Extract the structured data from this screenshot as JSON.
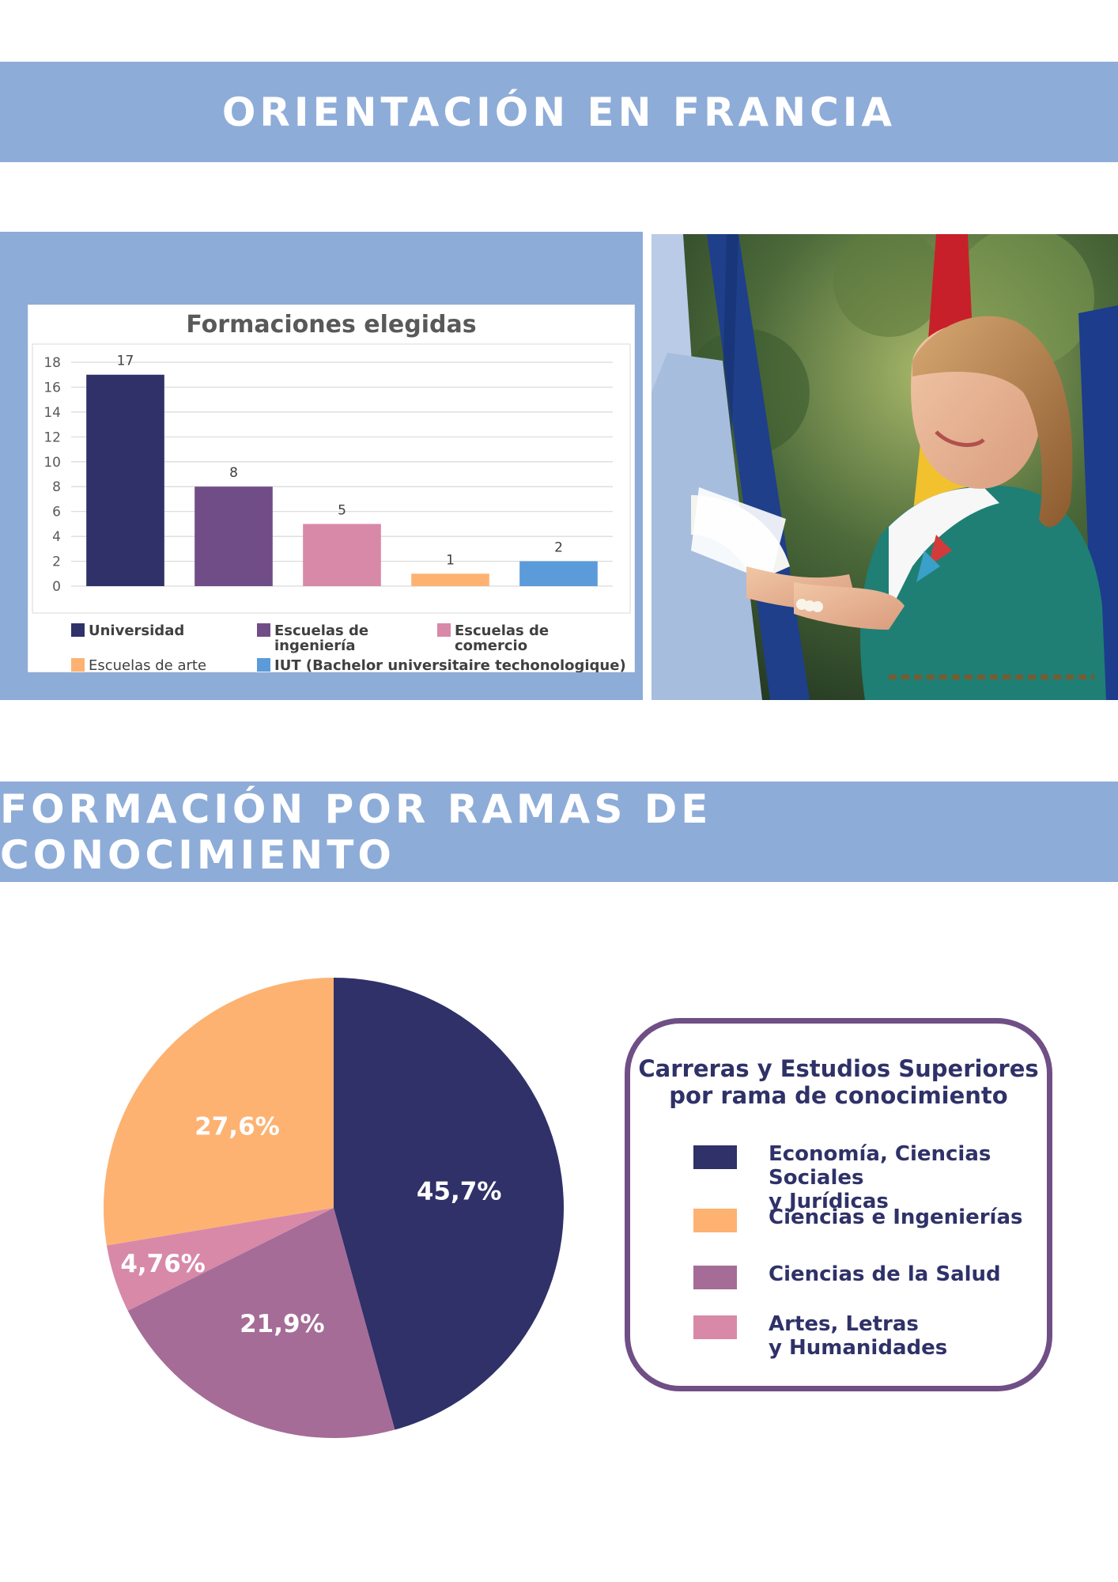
{
  "header": {
    "title": "ORIENTACIÓN EN FRANCIA"
  },
  "section2": {
    "title": "FORMACIÓN POR RAMAS DE CONOCIMIENTO"
  },
  "colors": {
    "banner": "#8eacd8",
    "navy": "#2f3168",
    "purple": "#714d87",
    "pink": "#d889a8",
    "orange": "#fdb272",
    "blue": "#5b9bd9",
    "mauve": "#a56c97"
  },
  "photo": {
    "description_icon": "photo-graduate-receiving-diploma"
  },
  "chart_data": [
    {
      "type": "bar",
      "title": "Formaciones elegidas",
      "categories": [
        "Universidad",
        "Escuelas de ingeniería",
        "Escuelas de comercio",
        "Escuelas de arte",
        "IUT (Bachelor universitaire techonologique)"
      ],
      "values": [
        17,
        8,
        5,
        1,
        2
      ],
      "ylim": [
        0,
        18
      ],
      "yticks": [
        0,
        2,
        4,
        6,
        8,
        10,
        12,
        14,
        16,
        18
      ],
      "grid": true,
      "legend_position": "bottom",
      "legend": [
        {
          "label_lines": [
            "Universidad"
          ],
          "color": "#2f3168"
        },
        {
          "label_lines": [
            "Escuelas de",
            "ingeniería"
          ],
          "color": "#714d87"
        },
        {
          "label_lines": [
            "Escuelas de",
            "comercio"
          ],
          "color": "#d889a8"
        },
        {
          "label_lines": [
            "Escuelas de arte"
          ],
          "color": "#fdb272"
        },
        {
          "label_lines": [
            "IUT (Bachelor universitaire techonologique)"
          ],
          "color": "#5b9bd9"
        }
      ],
      "colors": [
        "#2f3168",
        "#714d87",
        "#d889a8",
        "#fdb272",
        "#5b9bd9"
      ]
    },
    {
      "type": "pie",
      "title": "Carreras y Estudios Superiores por rama de conocimiento",
      "title_lines": [
        "Carreras y Estudios Superiores",
        "por rama de conocimiento"
      ],
      "categories": [
        "Economía, Ciencias Sociales y Jurídicas",
        "Ciencias e Ingenierías",
        "Ciencias de la Salud",
        "Artes, Letras y Humanidades"
      ],
      "values": [
        45.7,
        27.6,
        21.9,
        4.76
      ],
      "labels": [
        "45,7%",
        "27,6%",
        "21,9%",
        "4,76%"
      ],
      "order_clockwise_from_top": [
        0,
        2,
        3,
        1
      ],
      "colors": [
        "#2f3168",
        "#fdb272",
        "#a56c97",
        "#d889a8"
      ],
      "legend": [
        {
          "label_lines": [
            "Economía, Ciencias Sociales",
            "y Jurídicas"
          ],
          "color": "#2f3168"
        },
        {
          "label_lines": [
            "Ciencias e Ingenierías"
          ],
          "color": "#fdb272"
        },
        {
          "label_lines": [
            "Ciencias de la Salud"
          ],
          "color": "#a56c97"
        },
        {
          "label_lines": [
            "Artes, Letras",
            "y Humanidades"
          ],
          "color": "#d889a8"
        }
      ]
    }
  ]
}
